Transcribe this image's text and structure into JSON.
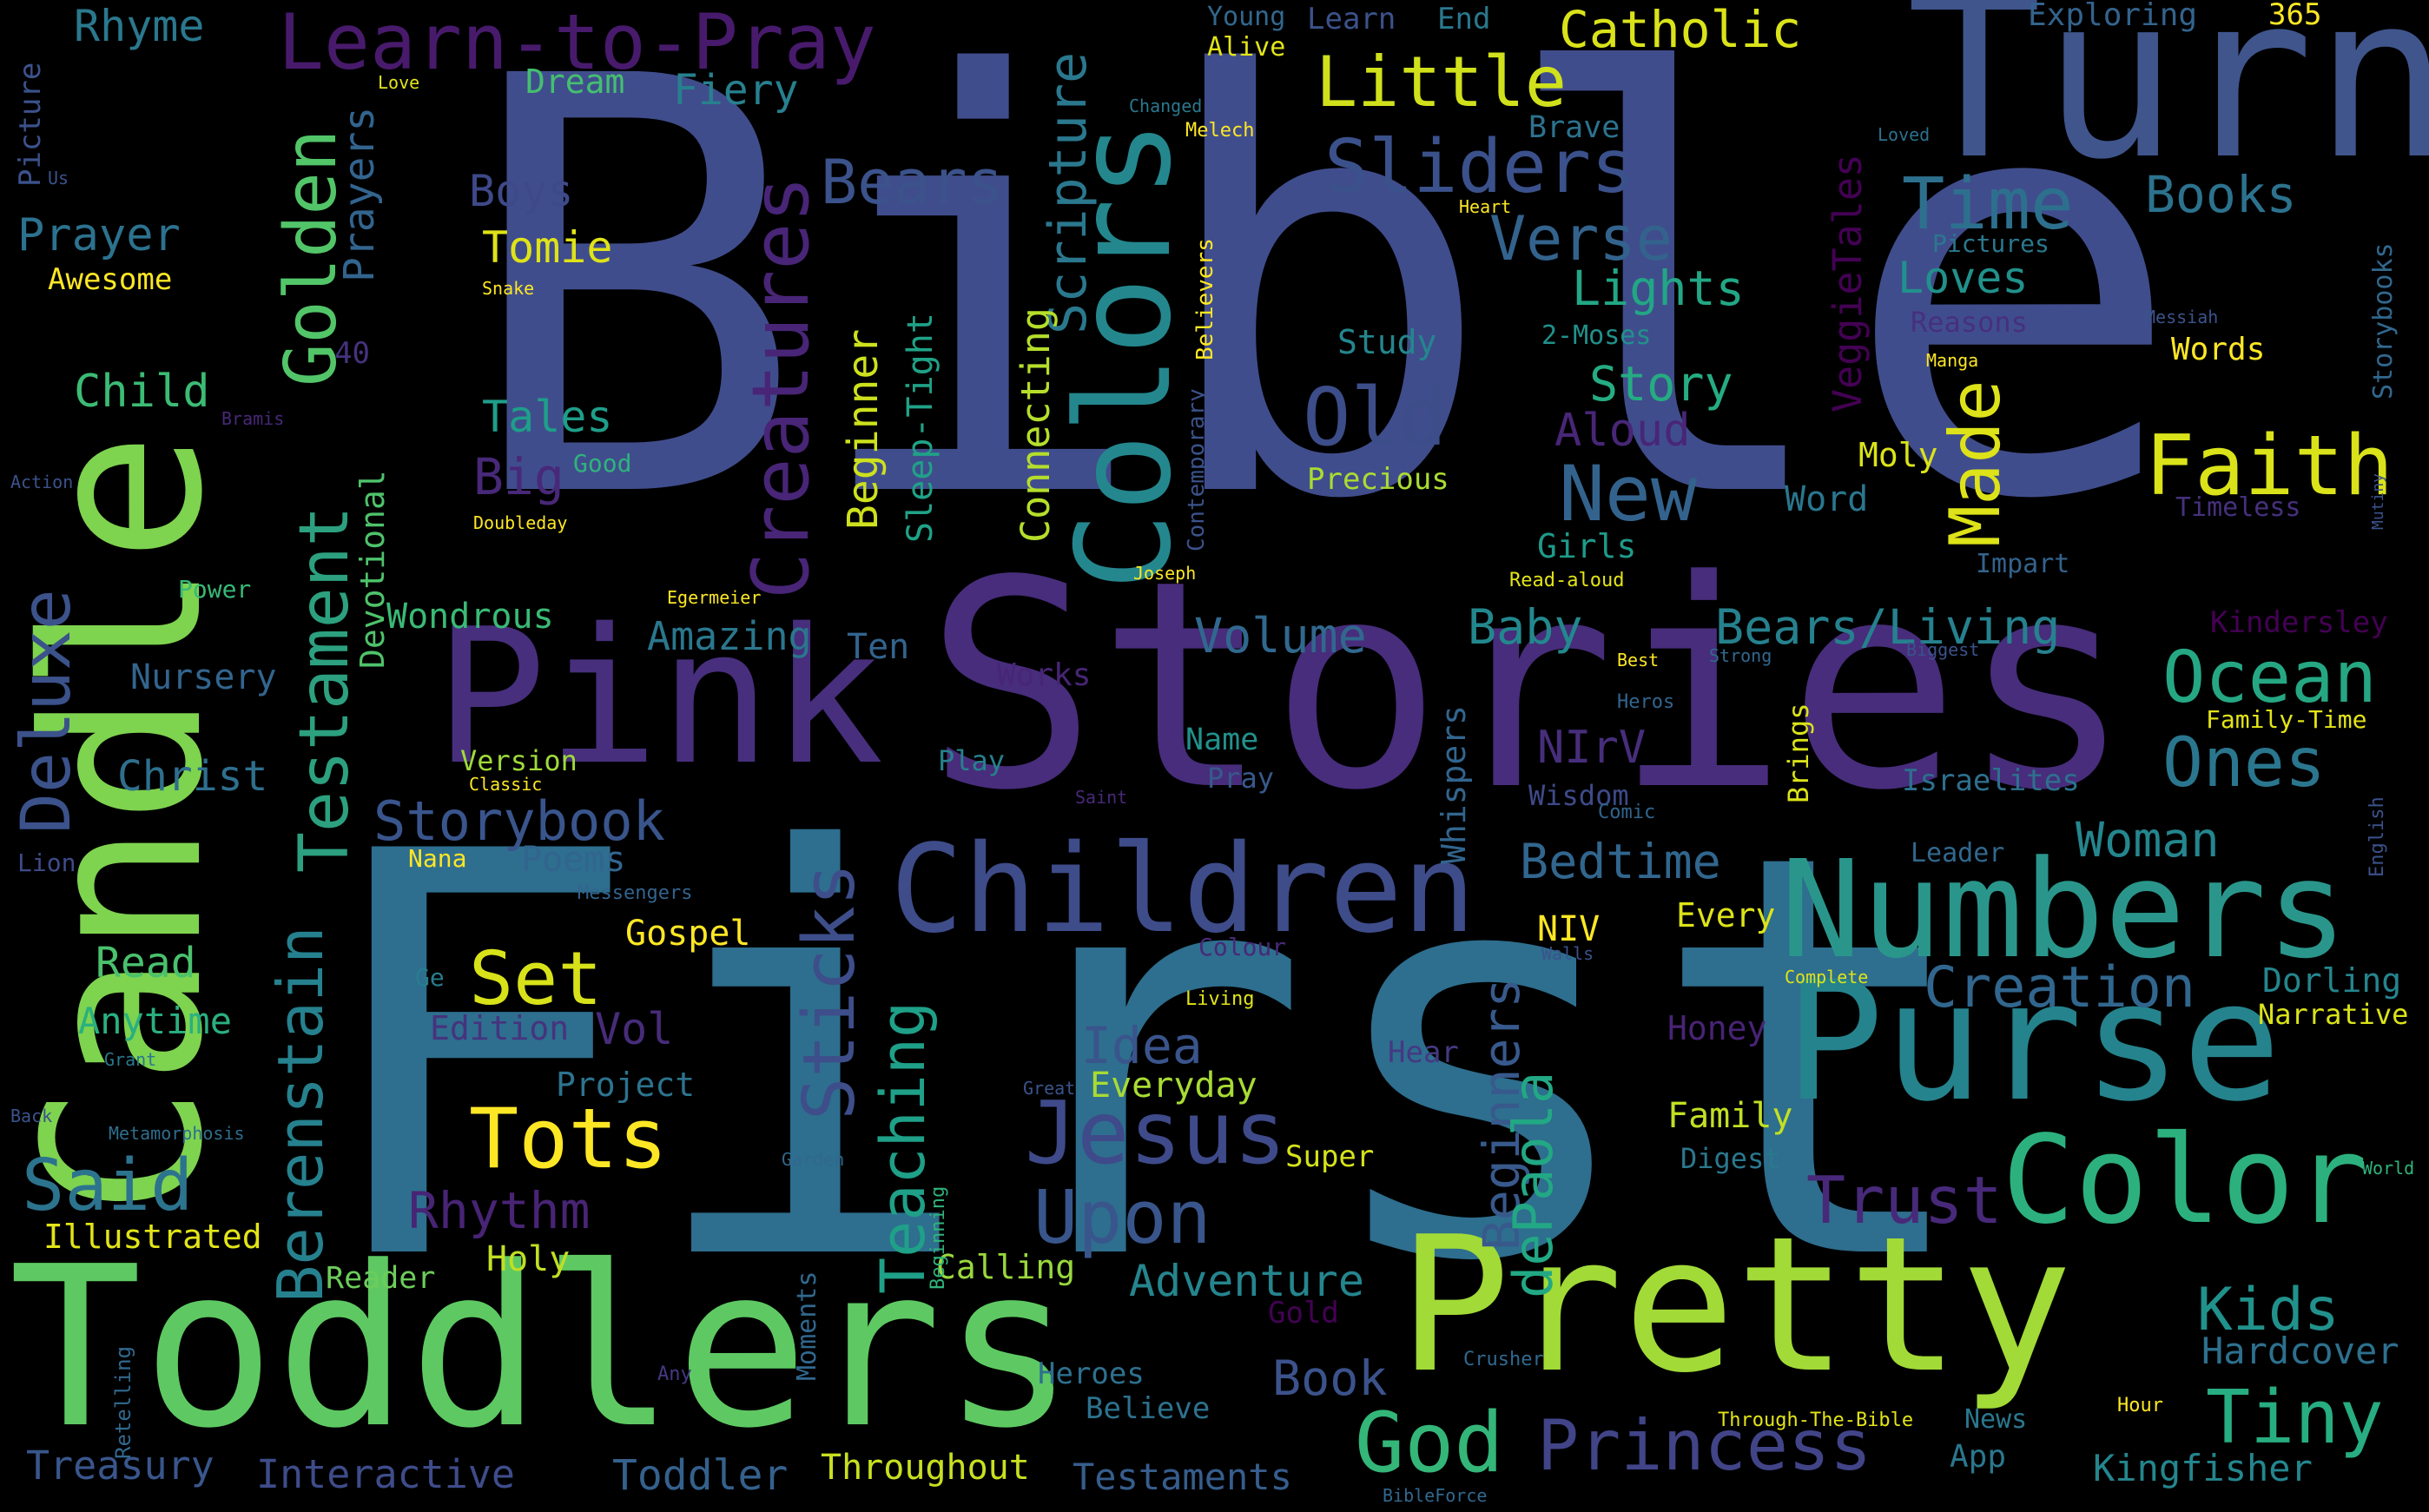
{
  "words": [
    {
      "text": "Bible",
      "color": "#404d8c"
    },
    {
      "text": "First",
      "color": "#2e6e8e"
    },
    {
      "text": "Stories",
      "color": "#472d7b"
    },
    {
      "text": "Candle",
      "color": "#7ed34f"
    },
    {
      "text": "Turn",
      "color": "#3f558c"
    },
    {
      "text": "Toddlers",
      "color": "#5ec962"
    },
    {
      "text": "Pink",
      "color": "#472f7d"
    },
    {
      "text": "Pretty",
      "color": "#a2da37"
    },
    {
      "text": "Purse",
      "color": "#25838d"
    },
    {
      "text": "Children",
      "color": "#3e4c8a"
    },
    {
      "text": "Numbers",
      "color": "#2a968b"
    },
    {
      "text": "Colors",
      "color": "#24878e"
    },
    {
      "text": "Color",
      "color": "#2cb17e"
    },
    {
      "text": "Learn-to-Pray",
      "color": "#481a6c"
    },
    {
      "text": "Faith",
      "color": "#dae319"
    },
    {
      "text": "Deluxe",
      "color": "#3b528b"
    },
    {
      "text": "Testament",
      "color": "#2ca07f"
    },
    {
      "text": "Berenstain",
      "color": "#26818e"
    },
    {
      "text": "Golden",
      "color": "#52c569"
    },
    {
      "text": "Creatures",
      "color": "#482576"
    },
    {
      "text": "Jesus",
      "color": "#3e4a89"
    },
    {
      "text": "Tots",
      "color": "#fde725"
    },
    {
      "text": "Set",
      "color": "#d8e219"
    },
    {
      "text": "Little",
      "color": "#d0e11c"
    },
    {
      "text": "Sliders",
      "color": "#3b518b"
    },
    {
      "text": "God",
      "color": "#34b679"
    },
    {
      "text": "Princess",
      "color": "#414487"
    },
    {
      "text": "Tiny",
      "color": "#27ad81"
    },
    {
      "text": "Ocean",
      "color": "#26a784"
    },
    {
      "text": "Ones",
      "color": "#2a768e"
    },
    {
      "text": "Upon",
      "color": "#39568c"
    },
    {
      "text": "Old",
      "color": "#3d4d8a"
    },
    {
      "text": "New",
      "color": "#33638d"
    },
    {
      "text": "Time",
      "color": "#2d708e"
    },
    {
      "text": "Made",
      "color": "#dde318"
    },
    {
      "text": "Said",
      "color": "#2c738e"
    },
    {
      "text": "Trust",
      "color": "#482979"
    },
    {
      "text": "Creation",
      "color": "#31668e"
    },
    {
      "text": "Sticks",
      "color": "#3d4e8a"
    },
    {
      "text": "Teaching",
      "color": "#1fa088"
    },
    {
      "text": "Storybook",
      "color": "#39558c"
    },
    {
      "text": "Verse",
      "color": "#33638d"
    },
    {
      "text": "Catholic",
      "color": "#dae319"
    },
    {
      "text": "Bears",
      "color": "#3b528b"
    },
    {
      "text": "Scripture",
      "color": "#2a788e"
    },
    {
      "text": "Woman",
      "color": "#24868e"
    },
    {
      "text": "Kids",
      "color": "#21918c"
    },
    {
      "text": "Books",
      "color": "#2c728e"
    },
    {
      "text": "Idea",
      "color": "#3a548c"
    },
    {
      "text": "Baby",
      "color": "#23888e"
    },
    {
      "text": "Bedtime",
      "color": "#31668e"
    },
    {
      "text": "Beginners",
      "color": "#38598c"
    },
    {
      "text": "dePaola",
      "color": "#22a884"
    },
    {
      "text": "Rhythm",
      "color": "#482475"
    },
    {
      "text": "Bears/Living",
      "color": "#26818e"
    },
    {
      "text": "Volume",
      "color": "#31688e"
    },
    {
      "text": "Story",
      "color": "#25ac82"
    },
    {
      "text": "Lights",
      "color": "#22a785"
    },
    {
      "text": "Loves",
      "color": "#21918c"
    },
    {
      "text": "Aloud",
      "color": "#482677"
    },
    {
      "text": "Tales",
      "color": "#1f9e89"
    },
    {
      "text": "Boys",
      "color": "#3e4989"
    },
    {
      "text": "Tomie",
      "color": "#dfe318"
    },
    {
      "text": "Prayer",
      "color": "#2c728e"
    },
    {
      "text": "Prayers",
      "color": "#32648e"
    },
    {
      "text": "Child",
      "color": "#3cbb75"
    },
    {
      "text": "Rhyme",
      "color": "#2a788e"
    },
    {
      "text": "Fiery",
      "color": "#27808e"
    },
    {
      "text": "Dream",
      "color": "#44bf70"
    },
    {
      "text": "Big",
      "color": "#482878"
    },
    {
      "text": "Christ",
      "color": "#2e6f8e"
    },
    {
      "text": "Read",
      "color": "#4ac16d"
    },
    {
      "text": "Anytime",
      "color": "#2ab07f"
    },
    {
      "text": "Adventure",
      "color": "#25858e"
    },
    {
      "text": "Hardcover",
      "color": "#2d708e"
    },
    {
      "text": "Kingfisher",
      "color": "#24868e"
    },
    {
      "text": "Toddler",
      "color": "#34618d"
    },
    {
      "text": "Interactive",
      "color": "#3e4c8a"
    },
    {
      "text": "Treasury",
      "color": "#39568c"
    },
    {
      "text": "Testaments",
      "color": "#365d8d"
    },
    {
      "text": "Throughout",
      "color": "#c8e020"
    },
    {
      "text": "Book",
      "color": "#3b528b"
    },
    {
      "text": "NIrV",
      "color": "#472e7c"
    },
    {
      "text": "Beginner",
      "color": "#cde11d"
    },
    {
      "text": "Sleep-Tight",
      "color": "#1fa287"
    },
    {
      "text": "Connecting",
      "color": "#b5de2b"
    },
    {
      "text": "VeggieTales",
      "color": "#440154"
    },
    {
      "text": "Amazing",
      "color": "#2a778e"
    },
    {
      "text": "Wondrous",
      "color": "#3aba76"
    },
    {
      "text": "Devotional",
      "color": "#4ec36b"
    },
    {
      "text": "Nursery",
      "color": "#32658e"
    },
    {
      "text": "Poems",
      "color": "#32658e"
    },
    {
      "text": "Vol",
      "color": "#472c7a"
    },
    {
      "text": "Edition",
      "color": "#46337e"
    },
    {
      "text": "Project",
      "color": "#2c738e"
    },
    {
      "text": "Holy",
      "color": "#c2df23"
    },
    {
      "text": "Everyday",
      "color": "#a8db34"
    },
    {
      "text": "Illustrated",
      "color": "#e2e418"
    },
    {
      "text": "Reader",
      "color": "#6ccd5a"
    },
    {
      "text": "Gospel",
      "color": "#fde725"
    },
    {
      "text": "NIV",
      "color": "#fde725"
    },
    {
      "text": "Every",
      "color": "#dde318"
    },
    {
      "text": "Honey",
      "color": "#482475"
    },
    {
      "text": "Dorling",
      "color": "#25858e"
    },
    {
      "text": "Narrative",
      "color": "#dae319"
    },
    {
      "text": "Family",
      "color": "#c2df23"
    },
    {
      "text": "Digest",
      "color": "#2a788e"
    },
    {
      "text": "Super",
      "color": "#d5e21a"
    },
    {
      "text": "Calling",
      "color": "#99d83d"
    },
    {
      "text": "Believe",
      "color": "#2c728e"
    },
    {
      "text": "Heroes",
      "color": "#2d708e"
    },
    {
      "text": "Whispers",
      "color": "#32658e"
    },
    {
      "text": "Wisdom",
      "color": "#3e4a89"
    },
    {
      "text": "Girls",
      "color": "#1f9a8a"
    },
    {
      "text": "Word",
      "color": "#2a768e"
    },
    {
      "text": "Moly",
      "color": "#dae319"
    },
    {
      "text": "Study",
      "color": "#24868e"
    },
    {
      "text": "2-Moses",
      "color": "#21918c"
    },
    {
      "text": "Precious",
      "color": "#aadc32"
    },
    {
      "text": "Ten",
      "color": "#32648e"
    },
    {
      "text": "Works",
      "color": "#482576"
    },
    {
      "text": "Version",
      "color": "#9fda3a"
    },
    {
      "text": "Play",
      "color": "#27808e"
    },
    {
      "text": "Name",
      "color": "#21918c"
    },
    {
      "text": "Pray",
      "color": "#38598c"
    },
    {
      "text": "Brave",
      "color": "#2c728e"
    },
    {
      "text": "Awesome",
      "color": "#fde725"
    },
    {
      "text": "40",
      "color": "#46327e"
    },
    {
      "text": "Good",
      "color": "#2fb47c"
    },
    {
      "text": "Power",
      "color": "#38b977"
    },
    {
      "text": "Lion",
      "color": "#3e4c8a"
    },
    {
      "text": "Nana",
      "color": "#fde725"
    },
    {
      "text": "Ge",
      "color": "#287c8e"
    },
    {
      "text": "Grant",
      "color": "#2a788e"
    },
    {
      "text": "Back",
      "color": "#3b528b"
    },
    {
      "text": "Metamorphosis",
      "color": "#2e6e8e"
    },
    {
      "text": "Garden",
      "color": "#31688e"
    },
    {
      "text": "Beginning",
      "color": "#2fb47c"
    },
    {
      "text": "Moments",
      "color": "#31688e"
    },
    {
      "text": "Retelling",
      "color": "#31688e"
    },
    {
      "text": "Any",
      "color": "#443a83"
    },
    {
      "text": "Gold",
      "color": "#440154"
    },
    {
      "text": "Great",
      "color": "#39558c"
    },
    {
      "text": "Living",
      "color": "#e2e418"
    },
    {
      "text": "Colour",
      "color": "#482878"
    },
    {
      "text": "Hear",
      "color": "#443983"
    },
    {
      "text": "Leader",
      "color": "#31688e"
    },
    {
      "text": "Walls",
      "color": "#3b528b"
    },
    {
      "text": "Complete",
      "color": "#dde318"
    },
    {
      "text": "Brings",
      "color": "#dae319"
    },
    {
      "text": "Israelites",
      "color": "#2d708e"
    },
    {
      "text": "Comic",
      "color": "#32648e"
    },
    {
      "text": "Heros",
      "color": "#32658e"
    },
    {
      "text": "Best",
      "color": "#fde725"
    },
    {
      "text": "Strong",
      "color": "#31688e"
    },
    {
      "text": "Biggest",
      "color": "#3b528b"
    },
    {
      "text": "Saint",
      "color": "#482878"
    },
    {
      "text": "Family-Time",
      "color": "#e2e418"
    },
    {
      "text": "Kindersley",
      "color": "#440154"
    },
    {
      "text": "Impart",
      "color": "#33638d"
    },
    {
      "text": "Timeless",
      "color": "#46307e"
    },
    {
      "text": "Reasons",
      "color": "#46307e"
    },
    {
      "text": "Words",
      "color": "#fde725"
    },
    {
      "text": "Pictures",
      "color": "#2a788e"
    },
    {
      "text": "Storybooks",
      "color": "#31688e"
    },
    {
      "text": "English",
      "color": "#3b528b"
    },
    {
      "text": "World",
      "color": "#2fb47c"
    },
    {
      "text": "Hour",
      "color": "#fde725"
    },
    {
      "text": "News",
      "color": "#2a788e"
    },
    {
      "text": "App",
      "color": "#2a788e"
    },
    {
      "text": "Through-The-Bible",
      "color": "#e2e418"
    },
    {
      "text": "BibleForce",
      "color": "#31688e"
    },
    {
      "text": "Crusher",
      "color": "#31688e"
    },
    {
      "text": "Mutiny",
      "color": "#3b528b"
    },
    {
      "text": "Messiah",
      "color": "#3b528b"
    },
    {
      "text": "Manga",
      "color": "#fde725"
    },
    {
      "text": "Loved",
      "color": "#2d708e"
    },
    {
      "text": "Heart",
      "color": "#fde725"
    },
    {
      "text": "Changed",
      "color": "#2a788e"
    },
    {
      "text": "Melech",
      "color": "#fde725"
    },
    {
      "text": "Believers",
      "color": "#fde725"
    },
    {
      "text": "Contemporary",
      "color": "#3b528b"
    },
    {
      "text": "Young",
      "color": "#31688e"
    },
    {
      "text": "Alive",
      "color": "#e2e418"
    },
    {
      "text": "Learn",
      "color": "#3b528b"
    },
    {
      "text": "End",
      "color": "#2a788e"
    },
    {
      "text": "Exploring",
      "color": "#33638d"
    },
    {
      "text": "365",
      "color": "#fde725"
    },
    {
      "text": "Picture",
      "color": "#3b528b"
    },
    {
      "text": "Us",
      "color": "#3b528b"
    },
    {
      "text": "Love",
      "color": "#e2e418"
    },
    {
      "text": "Snake",
      "color": "#fde725"
    },
    {
      "text": "Bramis",
      "color": "#482878"
    },
    {
      "text": "Action",
      "color": "#3b528b"
    },
    {
      "text": "Doubleday",
      "color": "#fde725"
    },
    {
      "text": "Classic",
      "color": "#fde725"
    },
    {
      "text": "Egermeier",
      "color": "#fde725"
    },
    {
      "text": "Joseph",
      "color": "#fde725"
    },
    {
      "text": "Read-aloud",
      "color": "#e2e418"
    },
    {
      "text": "Messengers",
      "color": "#32648e"
    }
  ]
}
